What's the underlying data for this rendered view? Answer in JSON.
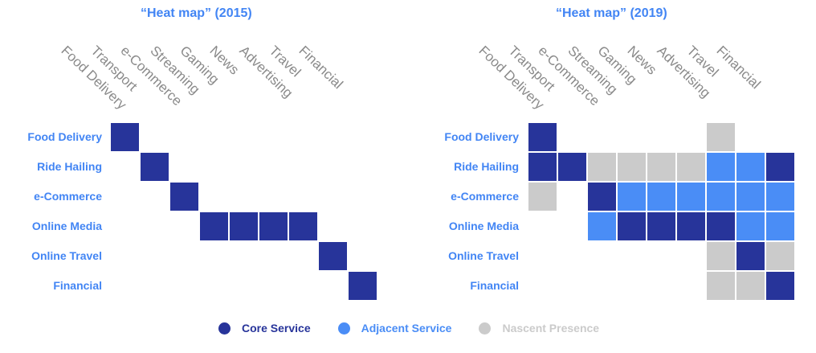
{
  "colors": {
    "core": "#27349a",
    "adjacent": "#4a8df6",
    "nascent": "#cbcbcb",
    "cell_border": "#ffffff",
    "title": "#4285f4",
    "row_label": "#4285f4",
    "col_label": "#8a8a8a"
  },
  "chart_data": [
    {
      "type": "heatmap",
      "title": "“Heat map” (2015)",
      "columns": [
        "Food Delivery",
        "Transport",
        "e-Commerce",
        "Streaming",
        "Gaming",
        "News",
        "Advertising",
        "Travel",
        "Financial"
      ],
      "rows": [
        "Food Delivery",
        "Ride Hailing",
        "e-Commerce",
        "Online Media",
        "Online Travel",
        "Financial"
      ],
      "values": [
        [
          "core",
          null,
          null,
          null,
          null,
          null,
          null,
          null,
          null
        ],
        [
          null,
          "core",
          null,
          null,
          null,
          null,
          null,
          null,
          null
        ],
        [
          null,
          null,
          "core",
          null,
          null,
          null,
          null,
          null,
          null
        ],
        [
          null,
          null,
          null,
          "core",
          "core",
          "core",
          "core",
          null,
          null
        ],
        [
          null,
          null,
          null,
          null,
          null,
          null,
          null,
          "core",
          null
        ],
        [
          null,
          null,
          null,
          null,
          null,
          null,
          null,
          null,
          "core"
        ]
      ]
    },
    {
      "type": "heatmap",
      "title": "“Heat map” (2019)",
      "columns": [
        "Food Delivery",
        "Transport",
        "e-Commerce",
        "Streaming",
        "Gaming",
        "News",
        "Advertising",
        "Travel",
        "Financial"
      ],
      "rows": [
        "Food Delivery",
        "Ride Hailing",
        "e-Commerce",
        "Online Media",
        "Online Travel",
        "Financial"
      ],
      "values": [
        [
          "core",
          null,
          null,
          null,
          null,
          null,
          "nascent",
          null,
          null
        ],
        [
          "core",
          "core",
          "nascent",
          "nascent",
          "nascent",
          "nascent",
          "adjacent",
          "adjacent",
          "core"
        ],
        [
          "nascent",
          null,
          "core",
          "adjacent",
          "adjacent",
          "adjacent",
          "adjacent",
          "adjacent",
          "adjacent"
        ],
        [
          null,
          null,
          "adjacent",
          "core",
          "core",
          "core",
          "core",
          "adjacent",
          "adjacent"
        ],
        [
          null,
          null,
          null,
          null,
          null,
          null,
          "nascent",
          "core",
          "nascent"
        ],
        [
          null,
          null,
          null,
          null,
          null,
          null,
          "nascent",
          "nascent",
          "core"
        ]
      ]
    }
  ],
  "legend": [
    {
      "key": "core",
      "label": "Core Service"
    },
    {
      "key": "adjacent",
      "label": "Adjacent Service"
    },
    {
      "key": "nascent",
      "label": "Nascent Presence"
    }
  ]
}
